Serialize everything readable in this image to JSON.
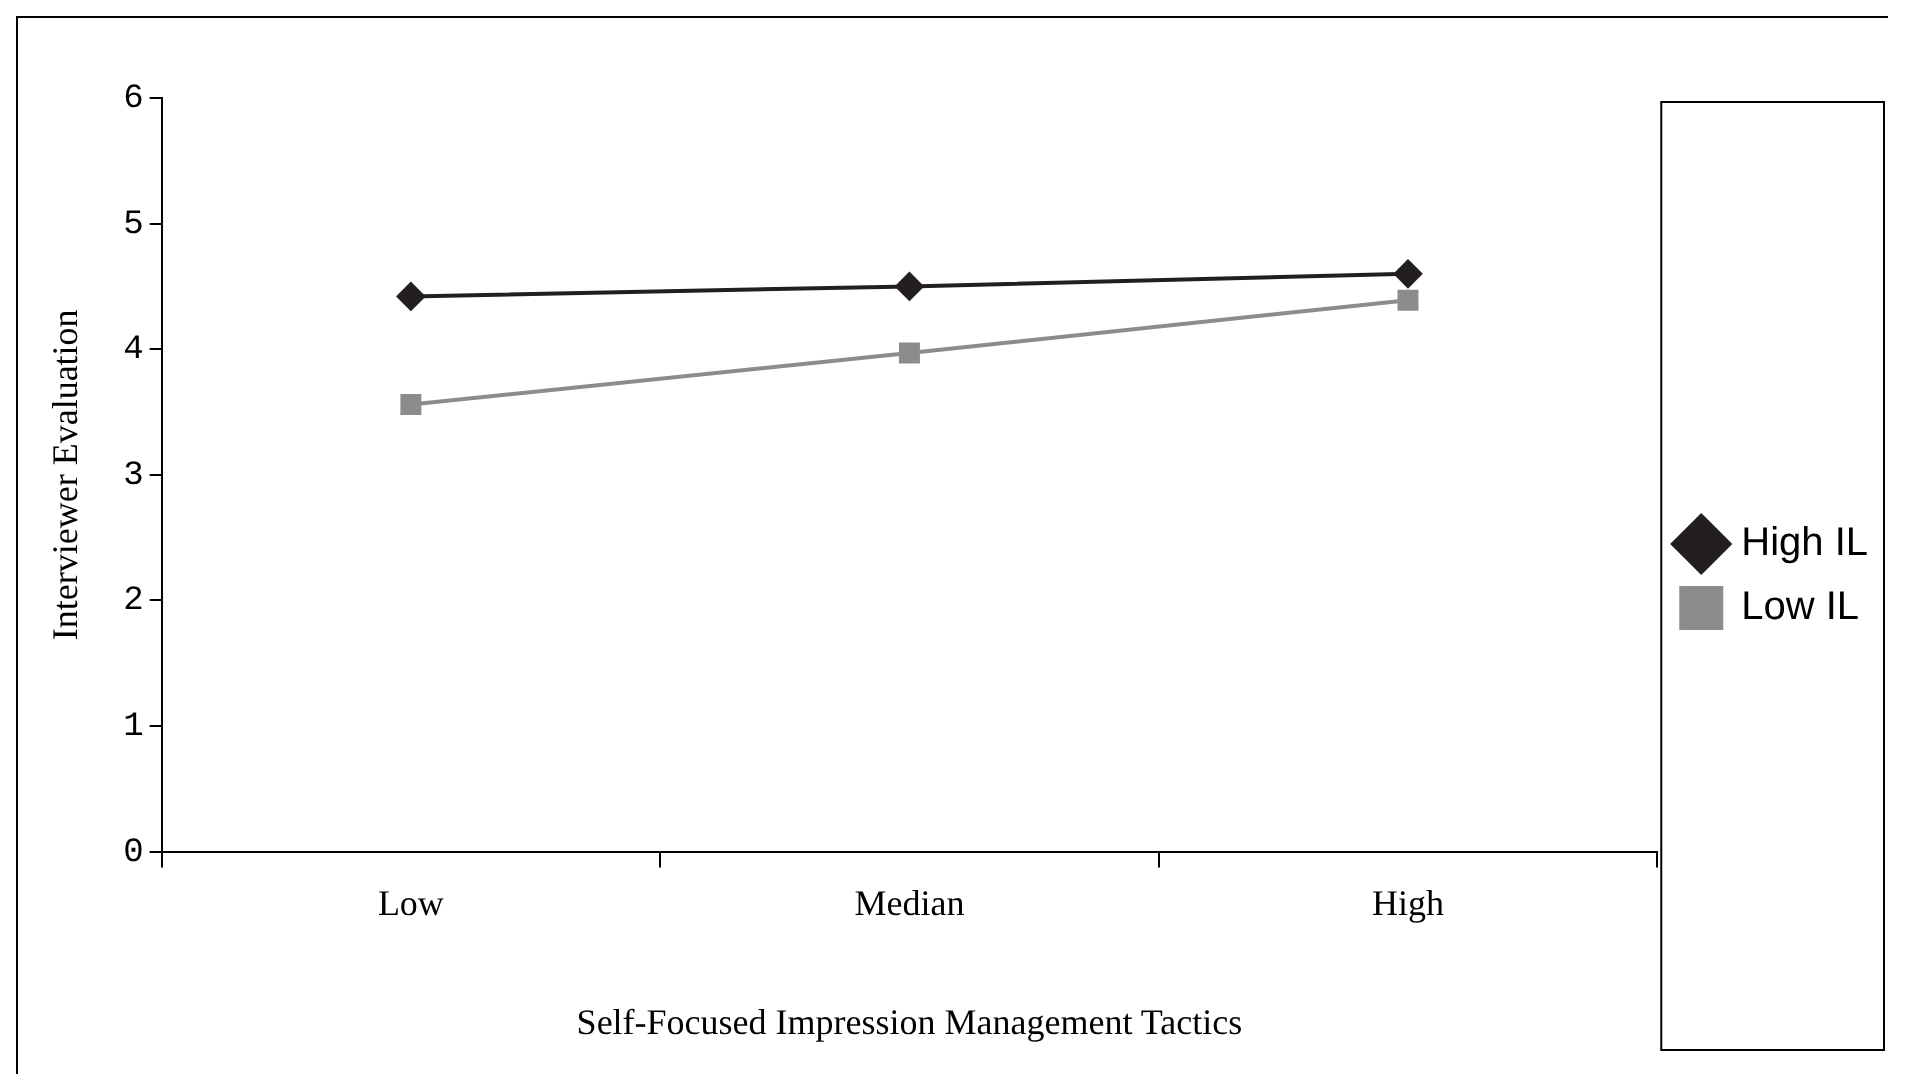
{
  "chart_data": {
    "type": "line",
    "xlabel": "Self-Focused Impression Management Tactics",
    "ylabel": "Interviewer Evaluation",
    "categories": [
      "Low",
      "Median",
      "High"
    ],
    "series": [
      {
        "name": "High IL",
        "color": "#231f20",
        "values": [
          4.42,
          4.5,
          4.6
        ],
        "marker": "diamond"
      },
      {
        "name": "Low IL",
        "color": "#8c8c8c",
        "values": [
          3.56,
          3.97,
          4.39
        ],
        "marker": "square"
      }
    ],
    "ylim": [
      0,
      6
    ],
    "yticks": [
      0,
      1,
      2,
      3,
      4,
      5,
      6
    ],
    "grid": false,
    "legend": "right"
  }
}
